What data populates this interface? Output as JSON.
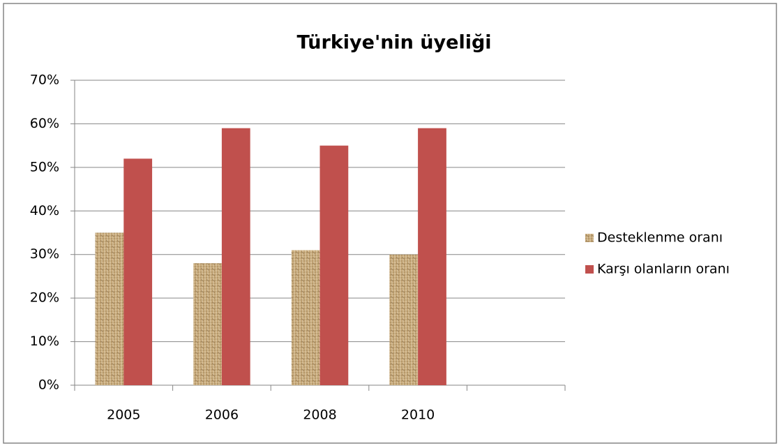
{
  "chart_data": {
    "type": "bar",
    "title": "Türkiye'nin üyeliği",
    "categories": [
      "2005",
      "2006",
      "2008",
      "2010",
      null
    ],
    "series": [
      {
        "name": "Desteklenme oranı",
        "color": "#c9ab7c",
        "values": [
          35,
          28,
          31,
          30,
          null
        ]
      },
      {
        "name": "Karşı olanların oranı",
        "color": "#c0504d",
        "values": [
          52,
          59,
          55,
          59,
          null
        ]
      }
    ],
    "ylim": [
      0,
      70
    ],
    "yticks": [
      {
        "value": 0,
        "label": "0%"
      },
      {
        "value": 10,
        "label": "10%"
      },
      {
        "value": 20,
        "label": "20%"
      },
      {
        "value": 30,
        "label": "30%"
      },
      {
        "value": 40,
        "label": "40%"
      },
      {
        "value": 50,
        "label": "50%"
      },
      {
        "value": 60,
        "label": "60%"
      },
      {
        "value": 70,
        "label": "70%"
      }
    ],
    "grid": true,
    "legend": "right"
  }
}
